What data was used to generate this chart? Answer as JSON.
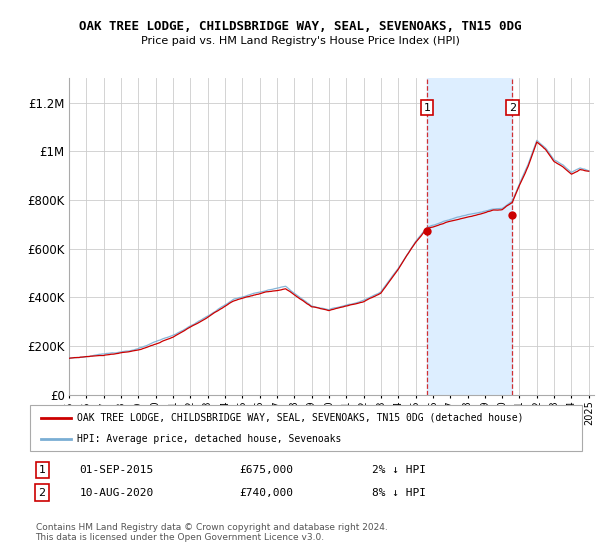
{
  "title": "OAK TREE LODGE, CHILDSBRIDGE WAY, SEAL, SEVENOAKS, TN15 0DG",
  "subtitle": "Price paid vs. HM Land Registry's House Price Index (HPI)",
  "legend_line1": "OAK TREE LODGE, CHILDSBRIDGE WAY, SEAL, SEVENOAKS, TN15 0DG (detached house)",
  "legend_line2": "HPI: Average price, detached house, Sevenoaks",
  "annotation1_date": "01-SEP-2015",
  "annotation1_price": "£675,000",
  "annotation1_hpi": "2% ↓ HPI",
  "annotation2_date": "10-AUG-2020",
  "annotation2_price": "£740,000",
  "annotation2_hpi": "8% ↓ HPI",
  "copyright": "Contains HM Land Registry data © Crown copyright and database right 2024.\nThis data is licensed under the Open Government Licence v3.0.",
  "hpi_color": "#7aaed4",
  "price_color": "#cc0000",
  "shaded_color": "#ddeeff",
  "ylim": [
    0,
    1300000
  ],
  "yticks": [
    0,
    200000,
    400000,
    600000,
    800000,
    1000000,
    1200000
  ],
  "ytick_labels": [
    "£0",
    "£200K",
    "£400K",
    "£600K",
    "£800K",
    "£1M",
    "£1.2M"
  ],
  "sale1_year": 2015.67,
  "sale2_year": 2020.58,
  "sale1_value": 675000,
  "sale2_value": 740000
}
